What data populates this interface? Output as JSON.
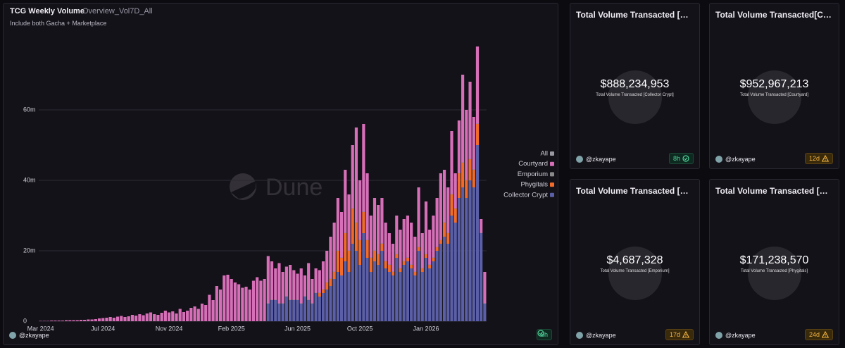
{
  "chart_data": {
    "type": "bar",
    "stacked": true,
    "title": "TCG Weekly Volume",
    "query_name": "Overview_Vol7D_All",
    "subtitle": "Include both Gacha + Marketplace",
    "watermark": "Dune",
    "legend_all": "All",
    "legend_position": "right",
    "grid": true,
    "author": "@zkayape",
    "freshness": "8h",
    "status": "ok",
    "categories": [
      "Mar 2024",
      null,
      null,
      null,
      null,
      null,
      null,
      null,
      null,
      null,
      null,
      null,
      null,
      null,
      null,
      null,
      null,
      "Jul 2024",
      null,
      null,
      null,
      null,
      null,
      null,
      null,
      null,
      null,
      null,
      null,
      null,
      null,
      null,
      null,
      null,
      null,
      "Nov 2024",
      null,
      null,
      null,
      null,
      null,
      null,
      null,
      null,
      null,
      null,
      null,
      null,
      null,
      null,
      null,
      null,
      "Feb 2025",
      null,
      null,
      null,
      null,
      null,
      null,
      null,
      null,
      null,
      null,
      null,
      null,
      null,
      null,
      null,
      null,
      null,
      "Jun 2025",
      null,
      null,
      null,
      null,
      null,
      null,
      null,
      null,
      null,
      null,
      null,
      null,
      null,
      null,
      null,
      null,
      "Oct 2025",
      null,
      null,
      null,
      null,
      null,
      null,
      null,
      null,
      null,
      null,
      null,
      null,
      null,
      null,
      null,
      null,
      null,
      "Jan 2026",
      null,
      null,
      null,
      null,
      null,
      null,
      null,
      null,
      null,
      null,
      null,
      null,
      null,
      null,
      null,
      null
    ],
    "series": [
      {
        "name": "Collector Crypt",
        "color": "#5a5fa8",
        "values": [
          0,
          0,
          0,
          0,
          0,
          0,
          0,
          0,
          0,
          0,
          0,
          0,
          0,
          0,
          0,
          0,
          0,
          0,
          0,
          0,
          0,
          0,
          0,
          0,
          0,
          0,
          0,
          0,
          0,
          0,
          0,
          0,
          0,
          0,
          0,
          0,
          0,
          0,
          0,
          0,
          0,
          0,
          0,
          0,
          0,
          0,
          0,
          0,
          0,
          0,
          0,
          0,
          0,
          0,
          0,
          0,
          0,
          0,
          0,
          0,
          0,
          0,
          5,
          6,
          6,
          5,
          5,
          7,
          6,
          6,
          6,
          5,
          7,
          6,
          5,
          8,
          7,
          8,
          9,
          10,
          12,
          14,
          13,
          17,
          14,
          22,
          20,
          16,
          25,
          18,
          14,
          17,
          16,
          20,
          15,
          14,
          13,
          18,
          14,
          16,
          17,
          15,
          13,
          20,
          14,
          18,
          15,
          17,
          20,
          22,
          24,
          22,
          30,
          28,
          35,
          38,
          35,
          40,
          38,
          50,
          25,
          5
        ]
      },
      {
        "name": "Phygitals",
        "color": "#f26b2a",
        "values": [
          0,
          0,
          0,
          0,
          0,
          0,
          0,
          0,
          0,
          0,
          0,
          0,
          0,
          0,
          0,
          0,
          0,
          0,
          0,
          0,
          0,
          0,
          0,
          0,
          0,
          0,
          0,
          0,
          0,
          0,
          0,
          0,
          0,
          0,
          0,
          0,
          0,
          0,
          0,
          0,
          0,
          0,
          0,
          0,
          0,
          0,
          0,
          0,
          0,
          0,
          0,
          0,
          0,
          0,
          0,
          0,
          0,
          0,
          0,
          0,
          0,
          0,
          0,
          0,
          0,
          0,
          0,
          0,
          0,
          0,
          0,
          0,
          0,
          0,
          0,
          0,
          1,
          1,
          2,
          2,
          2,
          6,
          5,
          8,
          6,
          10,
          8,
          7,
          6,
          5,
          4,
          3,
          3,
          2,
          2,
          2,
          1,
          1,
          1,
          1,
          1,
          1,
          1,
          1,
          1,
          1,
          1,
          1,
          1,
          1,
          4,
          3,
          6,
          4,
          7,
          7,
          5,
          6,
          5,
          6,
          0,
          0
        ]
      },
      {
        "name": "Emporium",
        "color": "#8a8a8a",
        "values": [
          0,
          0,
          0,
          0,
          0,
          0,
          0,
          0,
          0,
          0,
          0,
          0,
          0,
          0,
          0,
          0,
          0,
          0,
          0,
          0,
          0,
          0,
          0,
          0,
          0,
          0,
          0,
          0,
          0,
          0,
          0,
          0,
          0,
          0,
          0,
          0,
          0,
          0,
          0,
          0,
          0,
          0,
          0,
          0,
          0,
          0,
          0,
          0,
          0,
          0,
          0,
          0,
          0,
          0,
          0,
          0,
          0,
          0,
          0,
          0,
          0,
          0,
          0.1,
          0.1,
          0.1,
          0.1,
          0.1,
          0.1,
          0.1,
          0.1,
          0.1,
          0.1,
          0.1,
          0.1,
          0.1,
          0.1,
          0.1,
          0.1,
          0.1,
          0.1,
          0.1,
          0.1,
          0.1,
          0.1,
          0.1,
          0.1,
          0.1,
          0.1,
          0.1,
          0.1,
          0.1,
          0.1,
          0.1,
          0.1,
          0.1,
          0.1,
          0.1,
          0.1,
          0.1,
          0.1,
          0.1,
          0.1,
          0.1,
          0.1,
          0.1,
          0.1,
          0.1,
          0.1,
          0.1,
          0.1,
          0.1,
          0.1,
          0.1,
          0.1,
          0.1,
          0.1,
          0.1,
          0.1,
          0.1,
          0.1,
          0.1,
          0.1
        ]
      },
      {
        "name": "Courtyard",
        "color": "#d76fb8",
        "values": [
          0.1,
          0.1,
          0.1,
          0.2,
          0.2,
          0.2,
          0.2,
          0.3,
          0.3,
          0.3,
          0.3,
          0.4,
          0.4,
          0.5,
          0.5,
          0.6,
          0.8,
          0.9,
          1.0,
          1.2,
          1.0,
          1.3,
          1.5,
          1.2,
          1.4,
          1.8,
          1.6,
          2.0,
          1.7,
          2.2,
          2.5,
          2.0,
          1.8,
          2.4,
          3.0,
          2.5,
          2.8,
          2.2,
          3.5,
          2.6,
          3.0,
          3.8,
          4.2,
          3.5,
          5.0,
          4.6,
          7.5,
          6.0,
          10.0,
          9.0,
          13.0,
          13.2,
          12.0,
          11.0,
          10.5,
          9.5,
          9.8,
          9.0,
          11.5,
          12.5,
          11.5,
          12.0,
          13.4,
          10.9,
          8.9,
          11.4,
          8.9,
          8.4,
          9.9,
          8.4,
          7.4,
          9.9,
          5.9,
          10.4,
          6.9,
          6.9,
          6.4,
          7.9,
          8.9,
          11.9,
          13.9,
          14.9,
          12.9,
          17.9,
          15.9,
          17.9,
          26.9,
          16.9,
          24.9,
          18.9,
          11.9,
          14.9,
          13.9,
          12.9,
          10.9,
          8.9,
          7.9,
          10.9,
          10.9,
          11.9,
          11.9,
          11.9,
          9.9,
          16.9,
          9.9,
          14.9,
          9.9,
          11.9,
          13.9,
          18.9,
          14.9,
          12.9,
          17.9,
          9.9,
          14.9,
          24.9,
          19.9,
          21.9,
          14.9,
          21.9,
          3.9,
          8.9
        ]
      }
    ],
    "ylim": [
      0,
      80
    ],
    "yticks": [
      0,
      {
        "value": 20,
        "label": "20m"
      },
      {
        "value": 40,
        "label": "40m"
      },
      {
        "value": 60,
        "label": "60m"
      }
    ]
  },
  "counters": [
    {
      "title": "Total Volume Transacted [Collector Crypt]",
      "value": "$888,234,953",
      "label": "Total Volume Transacted [Collector Crypt]",
      "author": "@zkayape",
      "freshness": "8h",
      "status": "ok"
    },
    {
      "title": "Total Volume Transacted[Courtyard]",
      "value": "$952,967,213",
      "label": "Total Volume Transacted [Courtyard]",
      "author": "@zkayape",
      "freshness": "12d",
      "status": "stale"
    },
    {
      "title": "Total Volume Transacted [Emporium]",
      "value": "$4,687,328",
      "label": "Total Volume Transacted [Emporium]",
      "author": "@zkayape",
      "freshness": "17d",
      "status": "stale"
    },
    {
      "title": "Total Volume Transacted [Phygitals]",
      "value": "$171,238,570",
      "label": "Total Volume Transacted [Phygitals]",
      "author": "@zkayape",
      "freshness": "24d",
      "status": "stale"
    }
  ]
}
